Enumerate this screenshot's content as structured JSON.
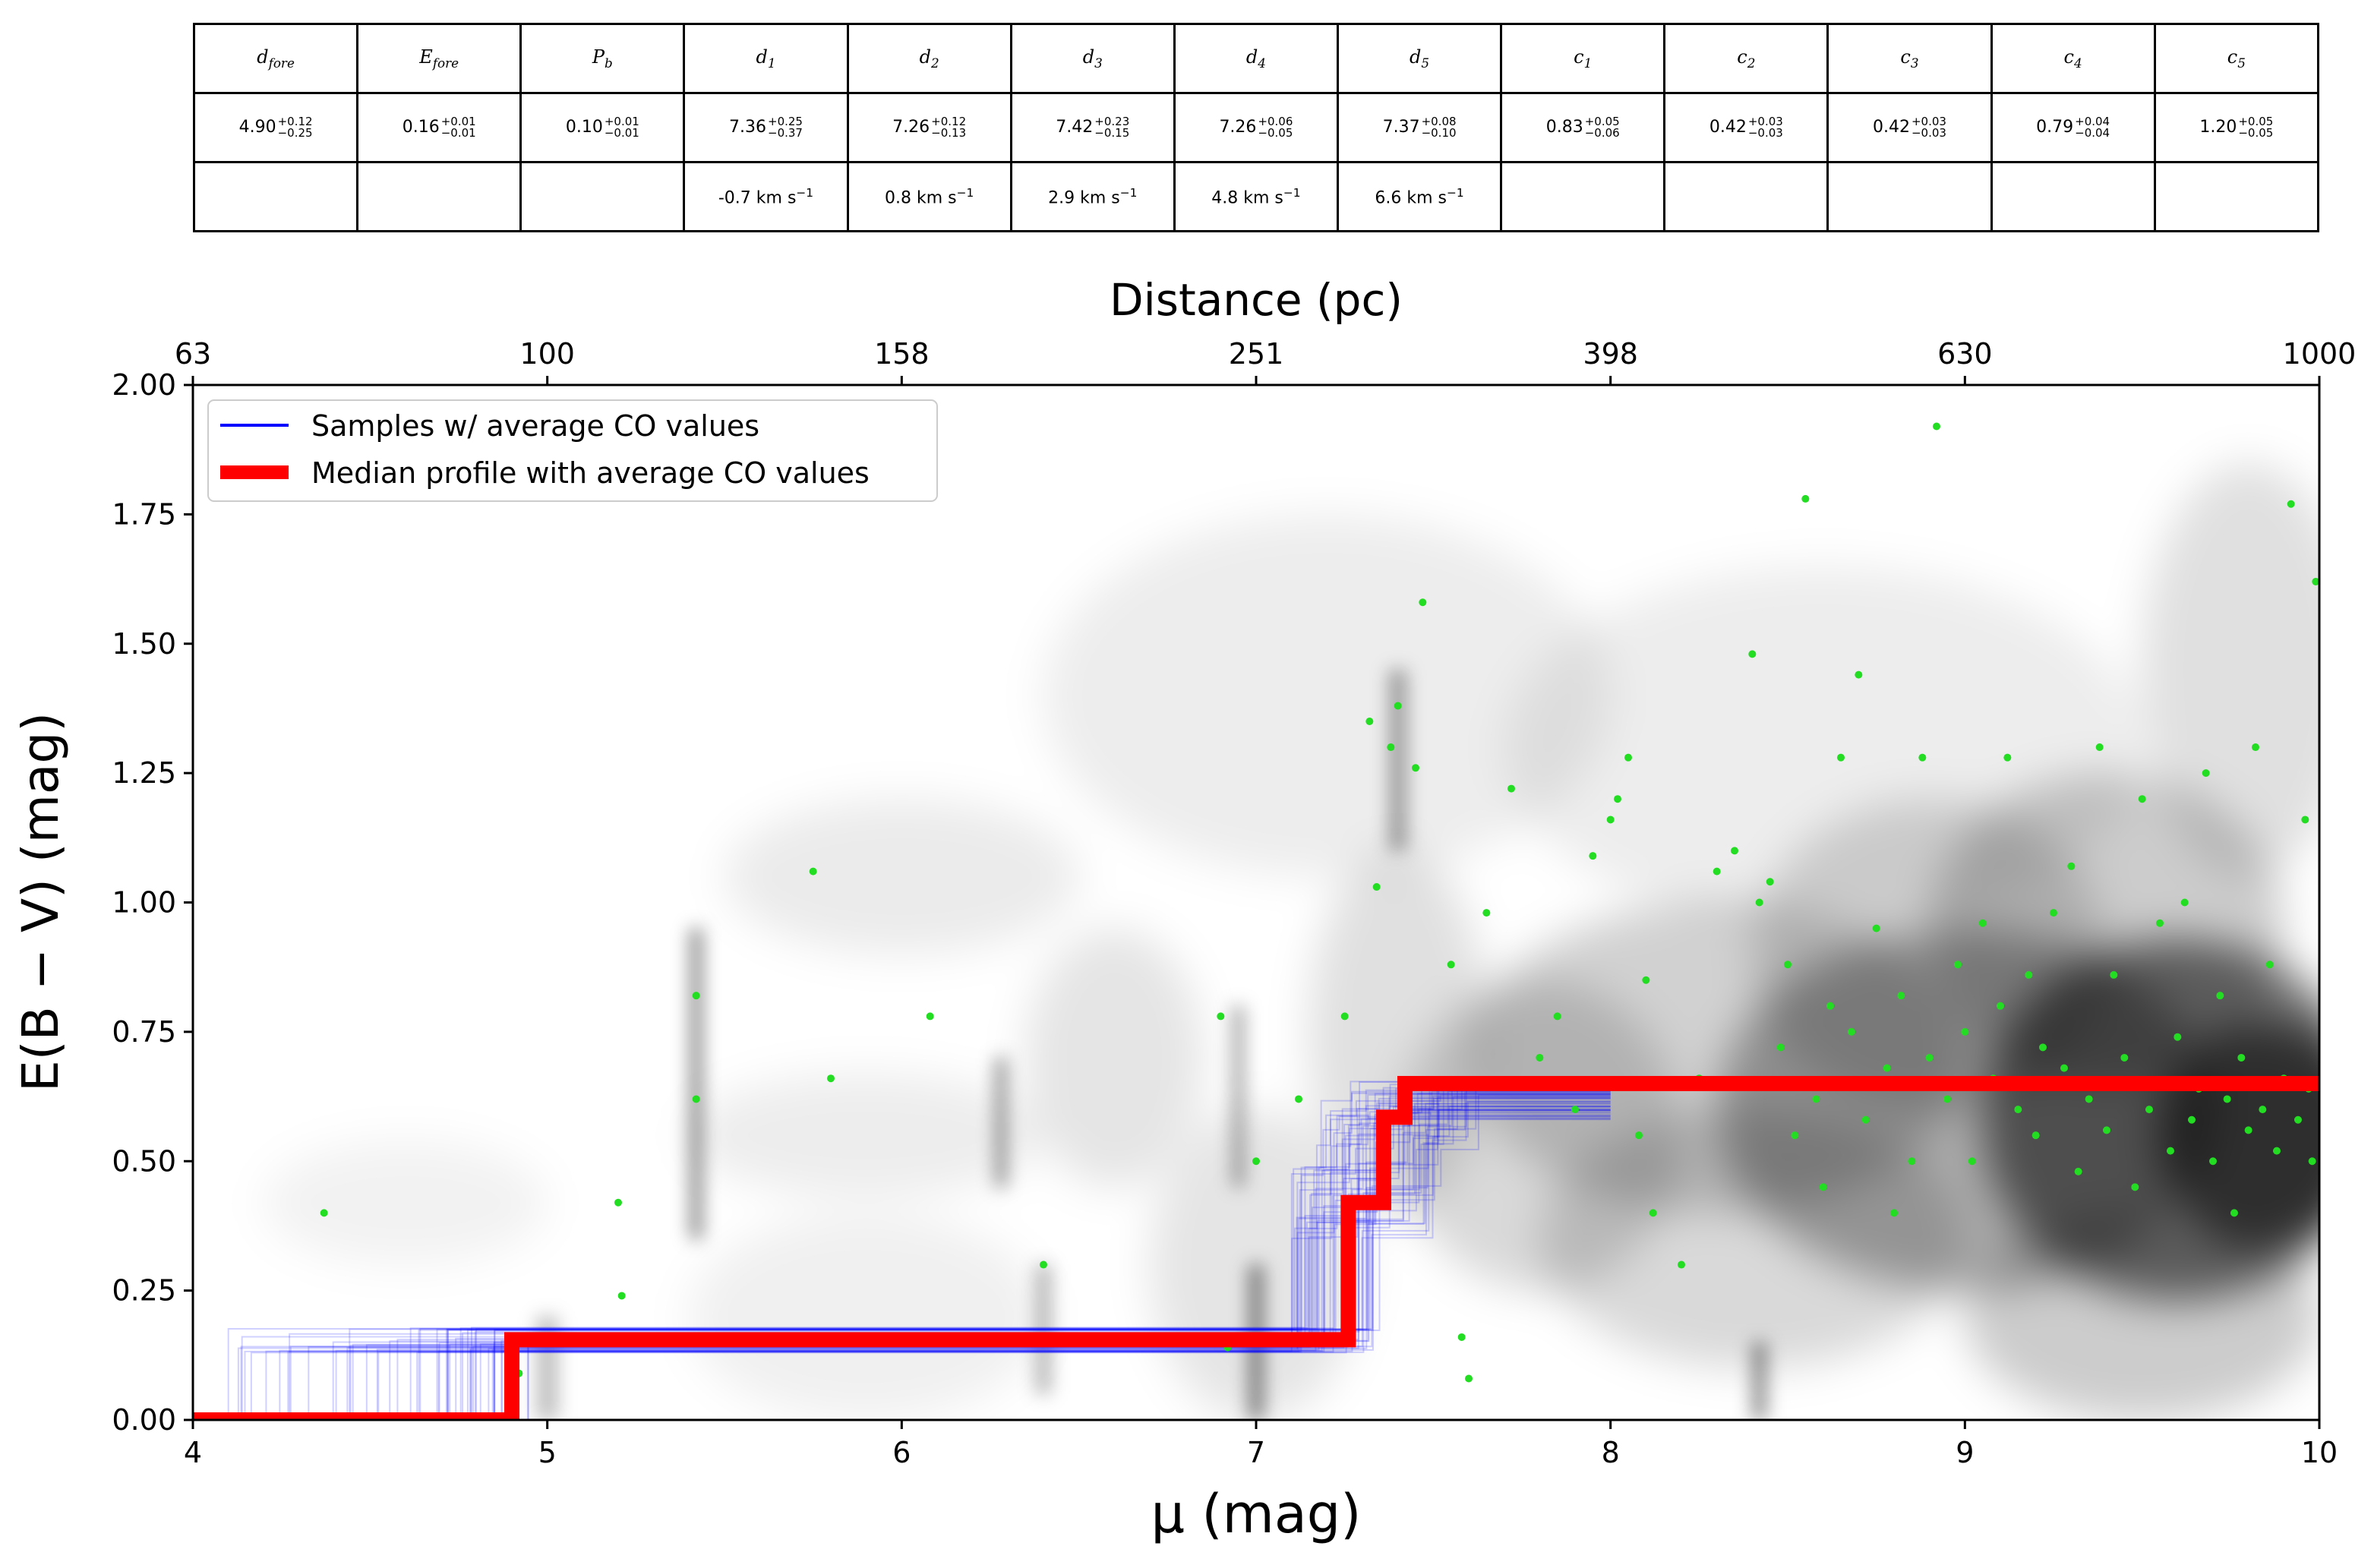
{
  "table": {
    "headers": [
      {
        "base": "d",
        "sub": "fore"
      },
      {
        "base": "E",
        "sub": "fore"
      },
      {
        "base": "P",
        "sub": "b"
      },
      {
        "base": "d",
        "sub": "1"
      },
      {
        "base": "d",
        "sub": "2"
      },
      {
        "base": "d",
        "sub": "3"
      },
      {
        "base": "d",
        "sub": "4"
      },
      {
        "base": "d",
        "sub": "5"
      },
      {
        "base": "c",
        "sub": "1"
      },
      {
        "base": "c",
        "sub": "2"
      },
      {
        "base": "c",
        "sub": "3"
      },
      {
        "base": "c",
        "sub": "4"
      },
      {
        "base": "c",
        "sub": "5"
      }
    ],
    "values": [
      {
        "val": "4.90",
        "plus": "+0.12",
        "minus": "−0.25"
      },
      {
        "val": "0.16",
        "plus": "+0.01",
        "minus": "−0.01"
      },
      {
        "val": "0.10",
        "plus": "+0.01",
        "minus": "−0.01"
      },
      {
        "val": "7.36",
        "plus": "+0.25",
        "minus": "−0.37"
      },
      {
        "val": "7.26",
        "plus": "+0.12",
        "minus": "−0.13"
      },
      {
        "val": "7.42",
        "plus": "+0.23",
        "minus": "−0.15"
      },
      {
        "val": "7.26",
        "plus": "+0.06",
        "minus": "−0.05"
      },
      {
        "val": "7.37",
        "plus": "+0.08",
        "minus": "−0.10"
      },
      {
        "val": "0.83",
        "plus": "+0.05",
        "minus": "−0.06"
      },
      {
        "val": "0.42",
        "plus": "+0.03",
        "minus": "−0.03"
      },
      {
        "val": "0.42",
        "plus": "+0.03",
        "minus": "−0.03"
      },
      {
        "val": "0.79",
        "plus": "+0.04",
        "minus": "−0.04"
      },
      {
        "val": "1.20",
        "plus": "+0.05",
        "minus": "−0.05"
      }
    ],
    "velocities": [
      "",
      "",
      "",
      "-0.7 km s",
      "0.8 km s",
      "2.9 km s",
      "4.8 km s",
      "6.6 km s",
      "",
      "",
      "",
      "",
      ""
    ],
    "velocity_exponent": "−1"
  },
  "chart_data": {
    "type": "line",
    "title": "",
    "xlabel": "μ (mag)",
    "ylabel": "E(B − V) (mag)",
    "x_top_label": "Distance (pc)",
    "xlim": [
      4,
      10
    ],
    "ylim": [
      0,
      2
    ],
    "x_ticks": [
      "4",
      "5",
      "6",
      "7",
      "8",
      "9",
      "10"
    ],
    "x_tick_values": [
      4,
      5,
      6,
      7,
      8,
      9,
      10
    ],
    "y_ticks": [
      "0.00",
      "0.25",
      "0.50",
      "0.75",
      "1.00",
      "1.25",
      "1.50",
      "1.75",
      "2.00"
    ],
    "y_tick_values": [
      0,
      0.25,
      0.5,
      0.75,
      1.0,
      1.25,
      1.5,
      1.75,
      2.0
    ],
    "top_ticks": [
      "63",
      "100",
      "158",
      "251",
      "398",
      "630",
      "1000"
    ],
    "top_tick_values": [
      4,
      5,
      6,
      7,
      8,
      9,
      10
    ],
    "legend": {
      "position": "top-left",
      "entries": [
        {
          "label": "Samples  w/ average CO values",
          "color": "#0000ff"
        },
        {
          "label": "Median profile with average CO values",
          "color": "#ff0000"
        }
      ]
    },
    "series": [
      {
        "name": "Median profile with average CO values",
        "color": "#ff0000",
        "step": true,
        "x": [
          4.0,
          4.9,
          4.9,
          7.26,
          7.26,
          7.36,
          7.36,
          7.42,
          7.42,
          10.0
        ],
        "y": [
          0.0,
          0.0,
          0.155,
          0.155,
          0.42,
          0.42,
          0.585,
          0.585,
          0.65,
          0.65
        ]
      }
    ],
    "samples_color": "#0000ff",
    "scatter_color": "#22dd22",
    "scatter_points": [
      [
        4.37,
        0.4
      ],
      [
        4.92,
        0.09
      ],
      [
        5.2,
        0.42
      ],
      [
        5.21,
        0.24
      ],
      [
        5.42,
        0.82
      ],
      [
        5.42,
        0.62
      ],
      [
        5.75,
        1.06
      ],
      [
        5.8,
        0.66
      ],
      [
        6.08,
        0.78
      ],
      [
        6.4,
        0.3
      ],
      [
        6.9,
        0.78
      ],
      [
        6.92,
        0.14
      ],
      [
        7.0,
        0.5
      ],
      [
        7.12,
        0.62
      ],
      [
        7.25,
        0.78
      ],
      [
        7.32,
        1.35
      ],
      [
        7.34,
        1.03
      ],
      [
        7.38,
        1.3
      ],
      [
        7.4,
        1.38
      ],
      [
        7.45,
        1.26
      ],
      [
        7.47,
        1.58
      ],
      [
        7.55,
        0.88
      ],
      [
        7.58,
        0.16
      ],
      [
        7.6,
        0.08
      ],
      [
        7.65,
        0.98
      ],
      [
        7.72,
        1.22
      ],
      [
        7.8,
        0.7
      ],
      [
        7.85,
        0.78
      ],
      [
        7.9,
        0.6
      ],
      [
        7.95,
        1.09
      ],
      [
        8.0,
        1.16
      ],
      [
        8.02,
        1.2
      ],
      [
        8.05,
        1.28
      ],
      [
        8.08,
        0.55
      ],
      [
        8.1,
        0.85
      ],
      [
        8.12,
        0.4
      ],
      [
        8.2,
        0.3
      ],
      [
        8.25,
        0.66
      ],
      [
        8.3,
        1.06
      ],
      [
        8.35,
        1.1
      ],
      [
        8.4,
        1.48
      ],
      [
        8.42,
        1.0
      ],
      [
        8.45,
        1.04
      ],
      [
        8.48,
        0.72
      ],
      [
        8.5,
        0.88
      ],
      [
        8.52,
        0.55
      ],
      [
        8.55,
        1.78
      ],
      [
        8.58,
        0.62
      ],
      [
        8.6,
        0.45
      ],
      [
        8.62,
        0.8
      ],
      [
        8.65,
        1.28
      ],
      [
        8.68,
        0.75
      ],
      [
        8.7,
        1.44
      ],
      [
        8.72,
        0.58
      ],
      [
        8.75,
        0.95
      ],
      [
        8.78,
        0.68
      ],
      [
        8.8,
        0.4
      ],
      [
        8.82,
        0.82
      ],
      [
        8.85,
        0.5
      ],
      [
        8.88,
        1.28
      ],
      [
        8.9,
        0.7
      ],
      [
        8.92,
        1.92
      ],
      [
        8.95,
        0.62
      ],
      [
        8.98,
        0.88
      ],
      [
        9.0,
        0.75
      ],
      [
        9.02,
        0.5
      ],
      [
        9.05,
        0.96
      ],
      [
        9.08,
        0.66
      ],
      [
        9.1,
        0.8
      ],
      [
        9.12,
        1.28
      ],
      [
        9.15,
        0.6
      ],
      [
        9.18,
        0.86
      ],
      [
        9.2,
        0.55
      ],
      [
        9.22,
        0.72
      ],
      [
        9.25,
        0.98
      ],
      [
        9.28,
        0.68
      ],
      [
        9.3,
        1.07
      ],
      [
        9.32,
        0.48
      ],
      [
        9.35,
        0.62
      ],
      [
        9.38,
        1.3
      ],
      [
        9.4,
        0.56
      ],
      [
        9.42,
        0.86
      ],
      [
        9.45,
        0.7
      ],
      [
        9.48,
        0.45
      ],
      [
        9.5,
        1.2
      ],
      [
        9.52,
        0.6
      ],
      [
        9.55,
        0.96
      ],
      [
        9.58,
        0.52
      ],
      [
        9.6,
        0.74
      ],
      [
        9.62,
        1.0
      ],
      [
        9.64,
        0.58
      ],
      [
        9.66,
        0.64
      ],
      [
        9.68,
        1.25
      ],
      [
        9.7,
        0.5
      ],
      [
        9.72,
        0.82
      ],
      [
        9.74,
        0.62
      ],
      [
        9.76,
        0.4
      ],
      [
        9.78,
        0.7
      ],
      [
        9.8,
        0.56
      ],
      [
        9.82,
        1.3
      ],
      [
        9.84,
        0.6
      ],
      [
        9.86,
        0.88
      ],
      [
        9.88,
        0.52
      ],
      [
        9.9,
        0.66
      ],
      [
        9.92,
        1.77
      ],
      [
        9.94,
        0.58
      ],
      [
        9.96,
        1.16
      ],
      [
        9.97,
        0.64
      ],
      [
        9.98,
        0.5
      ],
      [
        9.99,
        1.62
      ]
    ]
  }
}
